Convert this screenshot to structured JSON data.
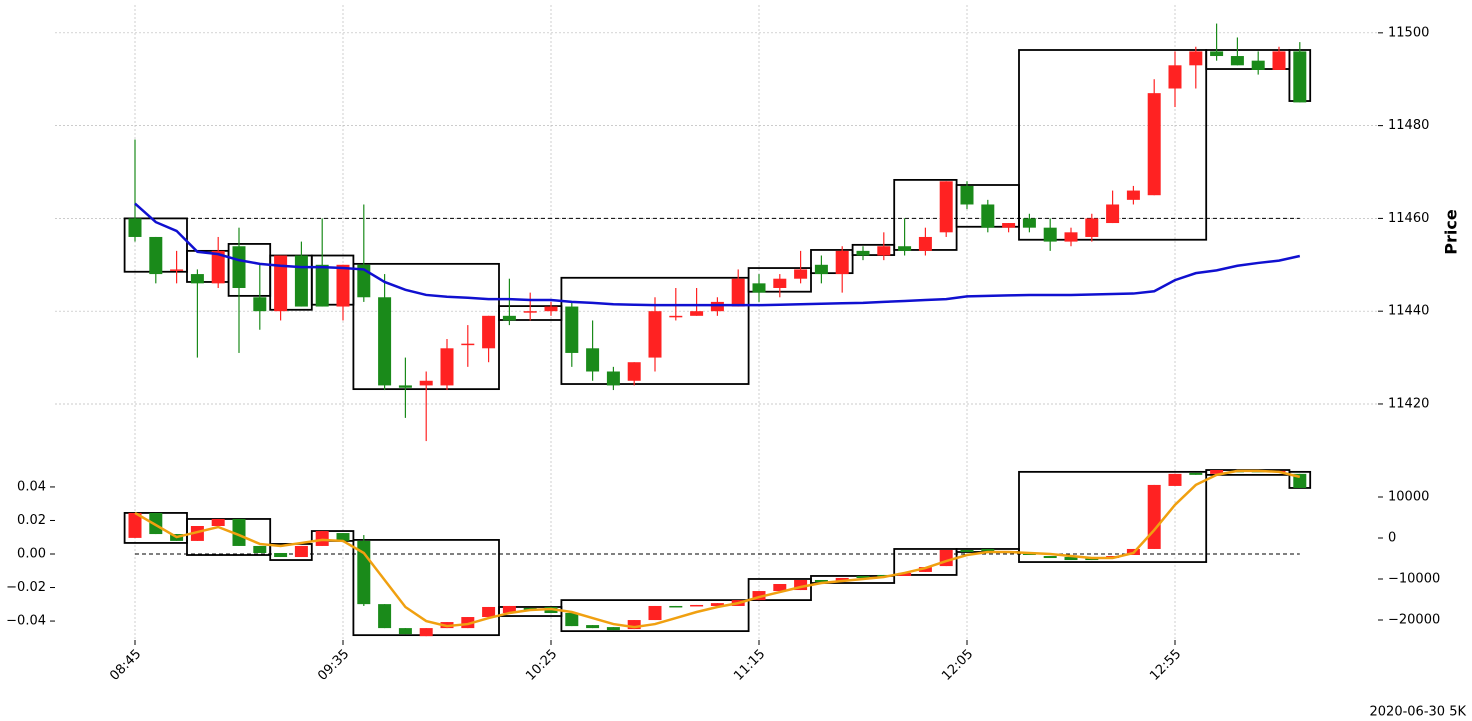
{
  "chart_data": [
    {
      "type": "candlestick",
      "ylabel": "Price",
      "up_color": "#ff2222",
      "down_color": "#1a8a1a",
      "grid": true,
      "ylim": [
        11409,
        11506
      ],
      "yticks": [
        11420,
        11440,
        11460,
        11480,
        11500
      ],
      "open": [
        11460,
        11456,
        11449,
        11448,
        11446,
        11454,
        11443,
        11440,
        11452,
        11450,
        11441,
        11450,
        11443,
        11424,
        11424,
        11424,
        11433,
        11432,
        11439,
        11440,
        11440,
        11441,
        11432,
        11427,
        11425,
        11430,
        11439,
        11439,
        11440,
        11441,
        11446,
        11445,
        11447,
        11450,
        11448,
        11453,
        11452,
        11454,
        11453,
        11457,
        11467,
        11463,
        11458,
        11460,
        11458,
        11455,
        11456,
        11459,
        11464,
        11465,
        11488,
        11493,
        11496,
        11495,
        11494,
        11492,
        11496
      ],
      "high": [
        11477,
        11456,
        11453,
        11449,
        11456,
        11458,
        11450,
        11452,
        11455,
        11460,
        11450,
        11463,
        11448,
        11430,
        11427,
        11434,
        11437,
        11439,
        11447,
        11444,
        11442,
        11442,
        11438,
        11428,
        11429,
        11443,
        11445,
        11445,
        11443,
        11449,
        11448,
        11448,
        11453,
        11452,
        11454,
        11454,
        11457,
        11460,
        11458,
        11468,
        11468,
        11464,
        11459,
        11461,
        11460,
        11458,
        11461,
        11466,
        11467,
        11490,
        11496,
        11497,
        11502,
        11499,
        11496,
        11497,
        11498
      ],
      "low": [
        11455,
        11446,
        11446,
        11430,
        11445,
        11431,
        11436,
        11438,
        11441,
        11441,
        11438,
        11442,
        11423,
        11417,
        11412,
        11423,
        11428,
        11429,
        11437,
        11438,
        11439,
        11428,
        11425,
        11423,
        11424,
        11427,
        11438,
        11439,
        11439,
        11441,
        11442,
        11443,
        11446,
        11446,
        11444,
        11451,
        11451,
        11452,
        11452,
        11456,
        11462,
        11457,
        11457,
        11457,
        11453,
        11454,
        11455,
        11459,
        11463,
        11465,
        11484,
        11488,
        11494,
        11493,
        11491,
        11492,
        11485
      ],
      "close": [
        11456,
        11448,
        11449,
        11446,
        11453,
        11445,
        11440,
        11452,
        11441,
        11441,
        11450,
        11443,
        11424,
        11423.5,
        11425,
        11432,
        11433,
        11439,
        11438,
        11440,
        11441,
        11431,
        11427,
        11424,
        11429,
        11440,
        11439,
        11440,
        11442,
        11447,
        11444,
        11447,
        11449,
        11448,
        11453,
        11452,
        11454,
        11453,
        11456,
        11468,
        11463,
        11458,
        11459,
        11458,
        11455,
        11457,
        11460,
        11463,
        11466,
        11487,
        11493,
        11496,
        11495,
        11493,
        11492,
        11496,
        11485
      ],
      "lines": [
        {
          "color": "#1010d0",
          "values": [
            11463.2,
            11459.2,
            11457.3,
            11452.8,
            11452.3,
            11451,
            11450.2,
            11449.8,
            11449.5,
            11449.5,
            11449.3,
            11449,
            11446.3,
            11444.6,
            11443.5,
            11443.1,
            11442.9,
            11442.6,
            11442.6,
            11442.4,
            11442.4,
            11442,
            11441.8,
            11441.5,
            11441.4,
            11441.3,
            11441.3,
            11441.3,
            11441.3,
            11441.3,
            11441.3,
            11441.4,
            11441.5,
            11441.6,
            11441.7,
            11441.8,
            11442,
            11442.2,
            11442.4,
            11442.6,
            11443.2,
            11443.3,
            11443.4,
            11443.5,
            11443.5,
            11443.5,
            11443.6,
            11443.7,
            11443.8,
            11444.3,
            11446.7,
            11448.2,
            11448.8,
            11449.8,
            11450.4,
            11450.9,
            11451.9
          ]
        }
      ],
      "reference_line": 11460,
      "boxes": [
        {
          "start": 0,
          "end": 2,
          "low": 11448.5,
          "high": 11460
        },
        {
          "start": 3,
          "end": 4,
          "low": 11446.3,
          "high": 11453
        },
        {
          "start": 5,
          "end": 6,
          "low": 11443.3,
          "high": 11454.5
        },
        {
          "start": 7,
          "end": 8,
          "low": 11440.3,
          "high": 11452
        },
        {
          "start": 9,
          "end": 10,
          "low": 11441.4,
          "high": 11452
        },
        {
          "start": 11,
          "end": 17,
          "low": 11423.2,
          "high": 11450.2
        },
        {
          "start": 18,
          "end": 20,
          "low": 11438.1,
          "high": 11441.1
        },
        {
          "start": 21,
          "end": 29,
          "low": 11424.3,
          "high": 11447.2
        },
        {
          "start": 30,
          "end": 32,
          "low": 11444.2,
          "high": 11449.3
        },
        {
          "start": 33,
          "end": 34,
          "low": 11448.2,
          "high": 11453.2
        },
        {
          "start": 35,
          "end": 36,
          "low": 11452.1,
          "high": 11454.3
        },
        {
          "start": 37,
          "end": 39,
          "low": 11453.2,
          "high": 11468.3
        },
        {
          "start": 40,
          "end": 42,
          "low": 11458.2,
          "high": 11467.2
        },
        {
          "start": 43,
          "end": 51,
          "low": 11455.4,
          "high": 11496.3
        },
        {
          "start": 52,
          "end": 55,
          "low": 11492.2,
          "high": 11496.3
        },
        {
          "start": 56,
          "end": 56,
          "low": 11485.3,
          "high": 11496.3
        }
      ]
    },
    {
      "type": "candlestick",
      "up_color": "#ff2222",
      "down_color": "#1a8a1a",
      "categories": [
        "08:45",
        null,
        null,
        null,
        null,
        null,
        null,
        null,
        null,
        null,
        "09:35",
        null,
        null,
        null,
        null,
        null,
        null,
        null,
        null,
        null,
        "10:25",
        null,
        null,
        null,
        null,
        null,
        null,
        null,
        null,
        null,
        "11:15",
        null,
        null,
        null,
        null,
        null,
        null,
        null,
        null,
        null,
        "12:05",
        null,
        null,
        null,
        null,
        null,
        null,
        null,
        null,
        null,
        "12:55",
        null,
        null,
        null,
        null,
        null,
        null
      ],
      "ylim": [
        -0.0513,
        0.0513
      ],
      "yticks": [
        {
          "value": -0.04,
          "label": "−0.04"
        },
        {
          "value": -0.02,
          "label": "−0.02"
        },
        {
          "value": 0,
          "label": "0.00"
        },
        0.02,
        0.04
      ],
      "y2lim": [
        -24878,
        17073
      ],
      "y2ticks": [
        {
          "value": -20000,
          "label": "−20000"
        },
        {
          "value": -10000,
          "label": "−10000"
        },
        0,
        10000
      ],
      "open": [
        0.0096,
        0.0245,
        0.0119,
        0.0078,
        0.0167,
        0.0209,
        0.0048,
        0.0006,
        -0.0018,
        0.0048,
        0.0125,
        0.0078,
        -0.0299,
        -0.0442,
        -0.049,
        -0.0442,
        -0.0442,
        -0.0376,
        -0.0352,
        -0.0322,
        -0.0316,
        -0.0352,
        -0.0424,
        -0.0436,
        -0.0448,
        -0.0394,
        -0.031,
        -0.031,
        -0.031,
        -0.031,
        -0.0275,
        -0.0221,
        -0.0215,
        -0.0155,
        -0.0161,
        -0.0131,
        -0.0125,
        -0.0131,
        -0.0107,
        -0.0072,
        0.0024,
        0.003,
        0.0012,
        0.0006,
        -0.0012,
        -0.0018,
        -0.0024,
        -0.0024,
        -0.0006,
        0.003,
        0.0406,
        0.0484,
        0.0478,
        0.0496,
        0.0496,
        0.049,
        0.0478
      ],
      "high": [
        0.0245,
        0.0245,
        0.0119,
        0.0167,
        0.0209,
        0.0209,
        0.0048,
        0.0006,
        0.0048,
        0.0137,
        0.0125,
        0.0113,
        -0.0299,
        -0.0442,
        -0.0442,
        -0.0406,
        -0.0376,
        -0.0316,
        -0.031,
        -0.0322,
        -0.0316,
        -0.0352,
        -0.0424,
        -0.0436,
        -0.0394,
        -0.031,
        -0.031,
        -0.0304,
        -0.0293,
        -0.0275,
        -0.0221,
        -0.0179,
        -0.0155,
        -0.0155,
        -0.0143,
        -0.0131,
        -0.0125,
        -0.0113,
        -0.0078,
        0.0024,
        0.0024,
        0.003,
        0.0018,
        0.0006,
        -0.0012,
        -0.0018,
        -0.0024,
        -0.0012,
        0.003,
        0.0412,
        0.0478,
        0.0484,
        0.0501,
        0.0496,
        0.0496,
        0.0496,
        0.0478
      ],
      "low": [
        0.0096,
        0.0119,
        0.0078,
        0.0078,
        0.0167,
        0.0048,
        0.0006,
        -0.0018,
        -0.0018,
        0.0048,
        0.0078,
        -0.031,
        -0.0442,
        -0.0478,
        -0.049,
        -0.0442,
        -0.0442,
        -0.0376,
        -0.0352,
        -0.0334,
        -0.0352,
        -0.043,
        -0.0442,
        -0.0454,
        -0.0448,
        -0.0394,
        -0.0316,
        -0.031,
        -0.031,
        -0.031,
        -0.0275,
        -0.0221,
        -0.0215,
        -0.0167,
        -0.0161,
        -0.0143,
        -0.0131,
        -0.0131,
        -0.0107,
        -0.0072,
        0.0012,
        0.0018,
        0.0012,
        -0.0006,
        -0.0024,
        -0.0036,
        -0.0036,
        -0.0024,
        -0.0006,
        0.003,
        0.0406,
        0.0472,
        0.0478,
        0.049,
        0.049,
        0.049,
        0.0394
      ],
      "close": [
        0.0245,
        0.0119,
        0.0078,
        0.0167,
        0.0209,
        0.0048,
        0.0006,
        -0.0018,
        0.0048,
        0.0137,
        0.0078,
        -0.0299,
        -0.0442,
        -0.0478,
        -0.0442,
        -0.0406,
        -0.0376,
        -0.0316,
        -0.031,
        -0.0334,
        -0.0352,
        -0.043,
        -0.0442,
        -0.0454,
        -0.0394,
        -0.031,
        -0.0316,
        -0.0304,
        -0.0293,
        -0.0275,
        -0.0221,
        -0.0179,
        -0.0155,
        -0.0167,
        -0.0143,
        -0.0143,
        -0.0131,
        -0.0113,
        -0.0078,
        0.0024,
        0.0012,
        0.0018,
        0.0018,
        -0.0006,
        -0.0024,
        -0.0036,
        -0.0036,
        -0.0012,
        0.003,
        0.0412,
        0.0478,
        0.0472,
        0.0501,
        0.049,
        0.049,
        0.0496,
        0.0394
      ],
      "lines": [
        {
          "color": "#f0a010",
          "values": [
            0.0245,
            0.0173,
            0.0101,
            0.0131,
            0.0161,
            0.0113,
            0.006,
            0.0048,
            0.0066,
            0.0084,
            0.0078,
            0.0006,
            -0.0155,
            -0.0316,
            -0.04,
            -0.043,
            -0.0418,
            -0.0382,
            -0.0352,
            -0.0334,
            -0.0328,
            -0.0346,
            -0.0382,
            -0.0418,
            -0.0436,
            -0.0418,
            -0.0382,
            -0.0346,
            -0.0316,
            -0.0293,
            -0.0257,
            -0.0227,
            -0.0197,
            -0.0173,
            -0.0161,
            -0.0149,
            -0.0137,
            -0.0113,
            -0.0084,
            -0.0042,
            -0.0006,
            0.0012,
            0.0012,
            0.0006,
            0,
            -0.0012,
            -0.0024,
            -0.0024,
            0.0006,
            0.0143,
            0.0293,
            0.0412,
            0.0472,
            0.0496,
            0.0496,
            0.049,
            0.046
          ]
        }
      ],
      "reference_line": 0,
      "boxes": [
        {
          "start": 0,
          "end": 2,
          "low": 0.0066,
          "high": 0.0245
        },
        {
          "start": 3,
          "end": 6,
          "low": -0.0006,
          "high": 0.0209
        },
        {
          "start": 7,
          "end": 8,
          "low": -0.0036,
          "high": 0.006
        },
        {
          "start": 9,
          "end": 10,
          "low": 0.0078,
          "high": 0.0137
        },
        {
          "start": 11,
          "end": 17,
          "low": -0.0484,
          "high": 0.0084
        },
        {
          "start": 18,
          "end": 20,
          "low": -0.037,
          "high": -0.0316
        },
        {
          "start": 21,
          "end": 29,
          "low": -0.046,
          "high": -0.0275
        },
        {
          "start": 30,
          "end": 32,
          "low": -0.0275,
          "high": -0.0149
        },
        {
          "start": 33,
          "end": 36,
          "low": -0.0173,
          "high": -0.0131
        },
        {
          "start": 37,
          "end": 39,
          "low": -0.0125,
          "high": 0.003
        },
        {
          "start": 40,
          "end": 42,
          "low": 0.0012,
          "high": 0.003
        },
        {
          "start": 43,
          "end": 51,
          "low": -0.0048,
          "high": 0.049
        },
        {
          "start": 52,
          "end": 55,
          "low": 0.0472,
          "high": 0.0501
        },
        {
          "start": 56,
          "end": 56,
          "low": 0.0394,
          "high": 0.049
        }
      ]
    }
  ],
  "footer": "2020-06-30 5K"
}
